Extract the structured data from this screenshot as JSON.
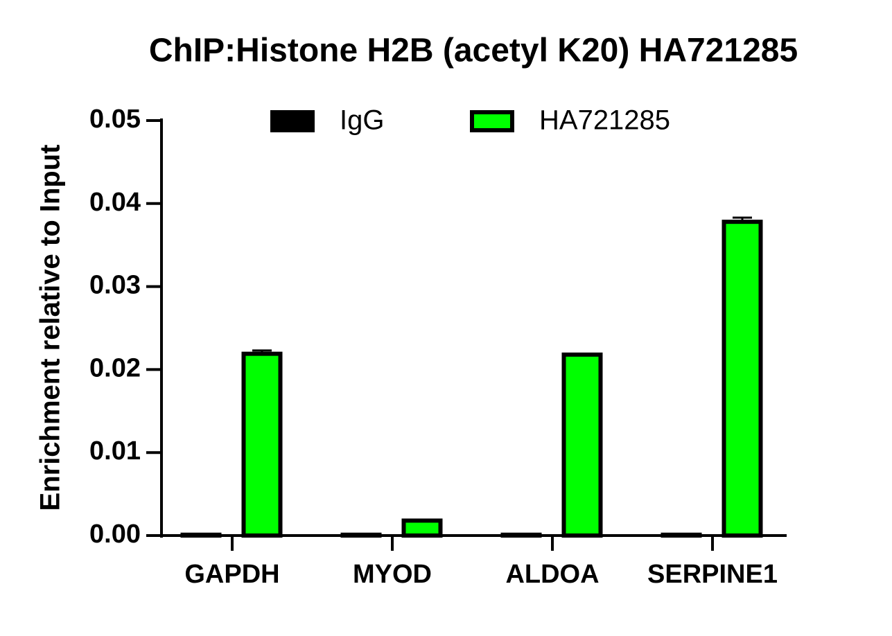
{
  "chart_data": {
    "type": "bar",
    "title": "ChIP:Histone H2B (acetyl K20) HA721285",
    "y_label": "Enrichment relative to Input",
    "categories": [
      "GAPDH",
      "MYOD",
      "ALDOA",
      "SERPINE1"
    ],
    "series": [
      {
        "name": "IgG",
        "color": "#000000",
        "values": [
          0.0001,
          0.0001,
          0.0001,
          0.0001
        ]
      },
      {
        "name": "HA721285",
        "color": "#00ff00",
        "values": [
          0.0219,
          0.0018,
          0.0218,
          0.0378
        ],
        "errors": [
          0.0004,
          0,
          0,
          0.0005
        ]
      }
    ],
    "ylim": [
      0,
      0.05
    ],
    "yticks": [
      {
        "value": 0,
        "label": "0.00"
      },
      0.01,
      0.02,
      0.03,
      0.04,
      0.05
    ],
    "legend": "top"
  }
}
